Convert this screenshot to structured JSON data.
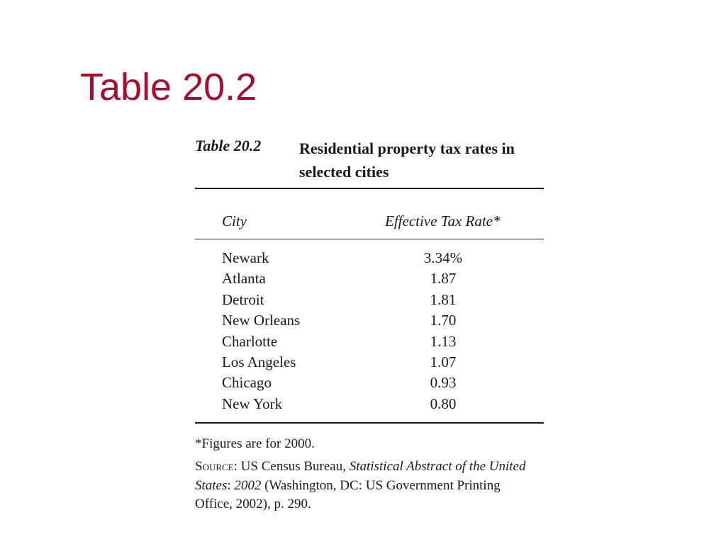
{
  "slide_title": "Table 20.2",
  "table": {
    "label": "Table 20.2",
    "caption": "Residential property tax rates in selected cities",
    "header": [
      "City",
      "Effective Tax Rate*"
    ],
    "rows": [
      [
        "Newark",
        "3.34%"
      ],
      [
        "Atlanta",
        "1.87"
      ],
      [
        "Detroit",
        "1.81"
      ],
      [
        "New Orleans",
        "1.70"
      ],
      [
        "Charlotte",
        "1.13"
      ],
      [
        "Los Angeles",
        "1.07"
      ],
      [
        "Chicago",
        "0.93"
      ],
      [
        "New York",
        "0.80"
      ]
    ],
    "footnote": "*Figures are for 2000.",
    "source": [
      "Source",
      ": US Census Bureau, ",
      "Statistical Abstract of the United States",
      ": ",
      "2002",
      " (Washington, DC: US Government Printing Office, 2002), p. 290."
    ]
  }
}
